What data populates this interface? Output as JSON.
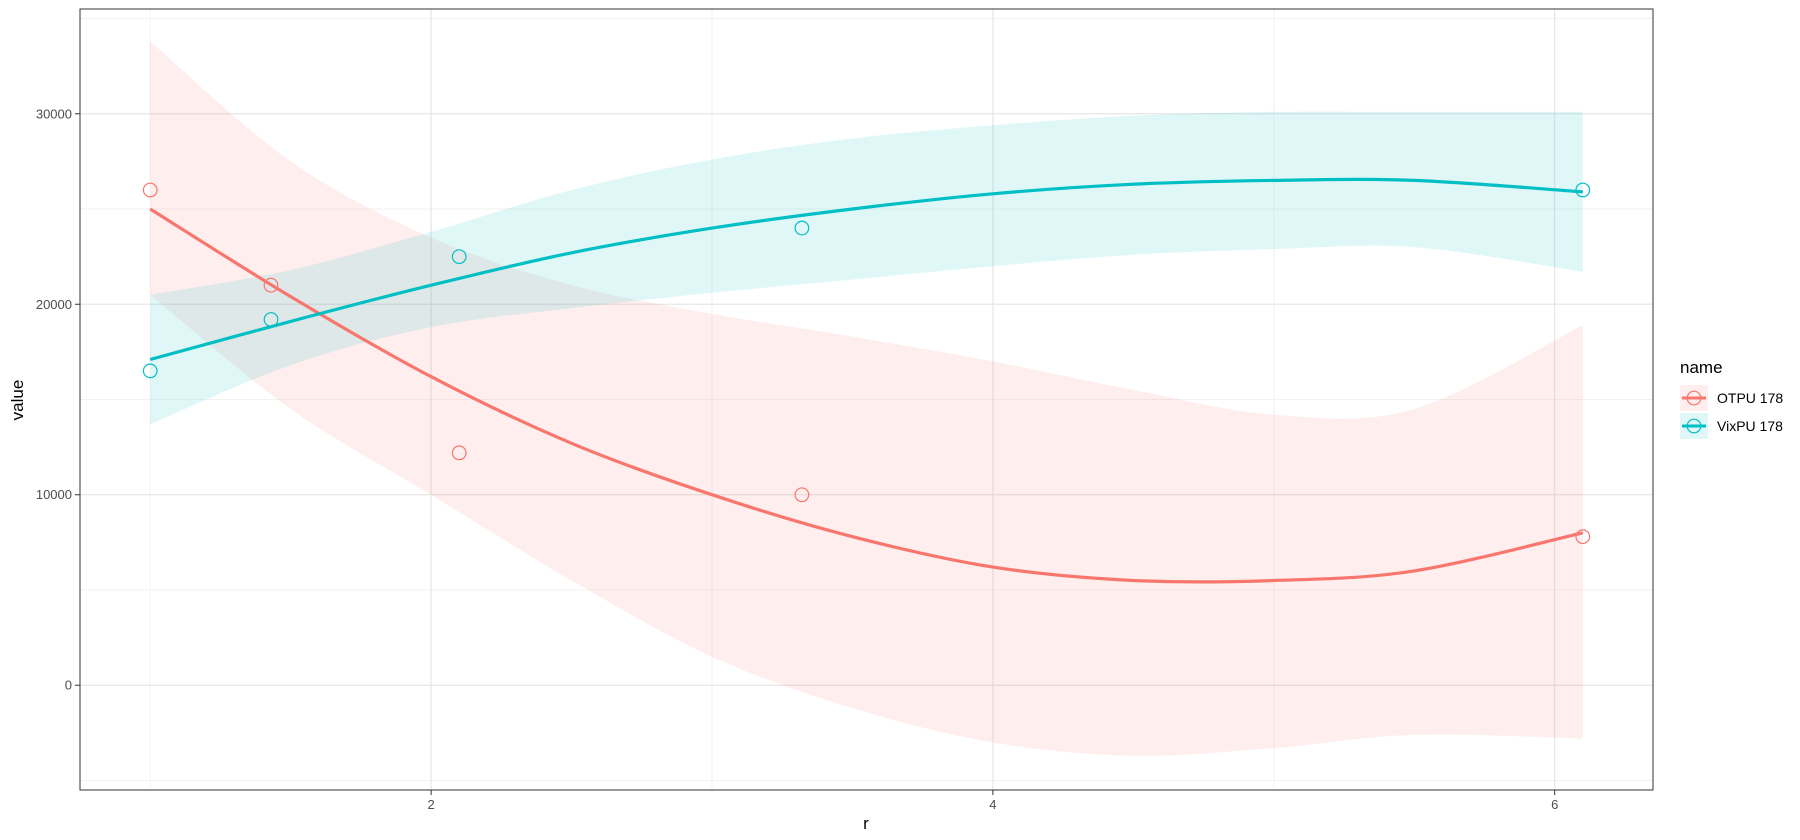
{
  "chart_data": {
    "type": "scatter",
    "title": "",
    "xlabel": "r",
    "ylabel": "value",
    "xlim": [
      0.75,
      6.35
    ],
    "ylim": [
      -5500,
      35500
    ],
    "x_ticks": [
      2,
      4,
      6
    ],
    "y_ticks": [
      0,
      10000,
      20000,
      30000
    ],
    "x_tick_labels": [
      "2",
      "4",
      "6"
    ],
    "y_tick_labels": [
      "0",
      "10000",
      "20000",
      "30000"
    ],
    "grid": true,
    "legend": {
      "title": "name",
      "position": "right"
    },
    "series": [
      {
        "name": "OTPU 178",
        "color": "#F8766D",
        "points": [
          {
            "x": 1.0,
            "y": 26000
          },
          {
            "x": 1.43,
            "y": 21000
          },
          {
            "x": 2.1,
            "y": 12200
          },
          {
            "x": 3.32,
            "y": 10000
          },
          {
            "x": 6.1,
            "y": 7800
          }
        ],
        "smooth": [
          {
            "x": 1.0,
            "y": 25000
          },
          {
            "x": 1.5,
            "y": 20400
          },
          {
            "x": 2.0,
            "y": 16200
          },
          {
            "x": 2.5,
            "y": 12700
          },
          {
            "x": 3.0,
            "y": 10000
          },
          {
            "x": 3.5,
            "y": 7800
          },
          {
            "x": 4.0,
            "y": 6200
          },
          {
            "x": 4.5,
            "y": 5500
          },
          {
            "x": 5.0,
            "y": 5500
          },
          {
            "x": 5.5,
            "y": 6000
          },
          {
            "x": 6.1,
            "y": 8000
          }
        ],
        "band_upper": [
          {
            "x": 1.0,
            "y": 33800
          },
          {
            "x": 1.5,
            "y": 27500
          },
          {
            "x": 2.0,
            "y": 23500
          },
          {
            "x": 2.5,
            "y": 21000
          },
          {
            "x": 3.0,
            "y": 19500
          },
          {
            "x": 3.5,
            "y": 18300
          },
          {
            "x": 4.0,
            "y": 17000
          },
          {
            "x": 4.5,
            "y": 15500
          },
          {
            "x": 5.0,
            "y": 14200
          },
          {
            "x": 5.5,
            "y": 14500
          },
          {
            "x": 6.1,
            "y": 18900
          }
        ],
        "band_lower": [
          {
            "x": 1.0,
            "y": 20500
          },
          {
            "x": 1.5,
            "y": 14500
          },
          {
            "x": 2.0,
            "y": 10000
          },
          {
            "x": 2.5,
            "y": 5500
          },
          {
            "x": 3.0,
            "y": 1500
          },
          {
            "x": 3.5,
            "y": -1200
          },
          {
            "x": 4.0,
            "y": -3000
          },
          {
            "x": 4.5,
            "y": -3700
          },
          {
            "x": 5.0,
            "y": -3300
          },
          {
            "x": 5.5,
            "y": -2600
          },
          {
            "x": 6.1,
            "y": -2800
          }
        ]
      },
      {
        "name": "VixPU 178",
        "color": "#00BFC4",
        "points": [
          {
            "x": 1.0,
            "y": 16500
          },
          {
            "x": 1.43,
            "y": 19200
          },
          {
            "x": 2.1,
            "y": 22500
          },
          {
            "x": 3.32,
            "y": 24000
          },
          {
            "x": 6.1,
            "y": 26000
          }
        ],
        "smooth": [
          {
            "x": 1.0,
            "y": 17100
          },
          {
            "x": 1.5,
            "y": 19100
          },
          {
            "x": 2.0,
            "y": 21000
          },
          {
            "x": 2.5,
            "y": 22700
          },
          {
            "x": 3.0,
            "y": 24000
          },
          {
            "x": 3.5,
            "y": 25000
          },
          {
            "x": 4.0,
            "y": 25800
          },
          {
            "x": 4.5,
            "y": 26300
          },
          {
            "x": 5.0,
            "y": 26500
          },
          {
            "x": 5.5,
            "y": 26500
          },
          {
            "x": 6.1,
            "y": 25900
          }
        ],
        "band_upper": [
          {
            "x": 1.0,
            "y": 20500
          },
          {
            "x": 1.5,
            "y": 21800
          },
          {
            "x": 2.0,
            "y": 23800
          },
          {
            "x": 2.5,
            "y": 26000
          },
          {
            "x": 3.0,
            "y": 27600
          },
          {
            "x": 3.5,
            "y": 28700
          },
          {
            "x": 4.0,
            "y": 29400
          },
          {
            "x": 4.5,
            "y": 29900
          },
          {
            "x": 5.0,
            "y": 30100
          },
          {
            "x": 5.5,
            "y": 30100
          },
          {
            "x": 6.1,
            "y": 30100
          }
        ],
        "band_lower": [
          {
            "x": 1.0,
            "y": 13700
          },
          {
            "x": 1.5,
            "y": 16800
          },
          {
            "x": 2.0,
            "y": 18800
          },
          {
            "x": 2.5,
            "y": 19800
          },
          {
            "x": 3.0,
            "y": 20600
          },
          {
            "x": 3.5,
            "y": 21300
          },
          {
            "x": 4.0,
            "y": 22000
          },
          {
            "x": 4.5,
            "y": 22600
          },
          {
            "x": 5.0,
            "y": 22900
          },
          {
            "x": 5.5,
            "y": 23000
          },
          {
            "x": 6.1,
            "y": 21700
          }
        ]
      }
    ]
  }
}
